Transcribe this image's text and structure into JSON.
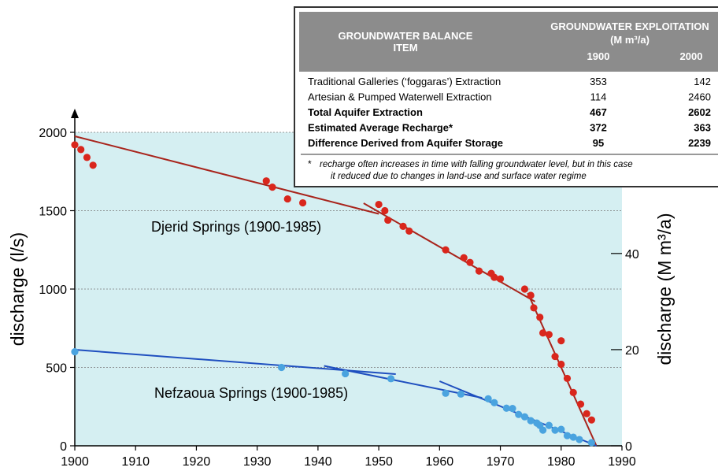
{
  "chart_data": {
    "type": "scatter",
    "xlim": [
      1900,
      1990
    ],
    "xticks": [
      1900,
      1910,
      1920,
      1930,
      1940,
      1950,
      1960,
      1970,
      1980,
      1990
    ],
    "ylim": [
      0,
      2000
    ],
    "yticks": [
      0,
      500,
      1000,
      1500,
      2000
    ],
    "y2lim": [
      0,
      65.2
    ],
    "y2ticks": [
      0,
      20,
      40
    ],
    "grid": true,
    "ylabel": "discharge (l/s)",
    "y2label": "discharge (M m³/a)",
    "series": [
      {
        "name": "Djerid Springs (1900-1985)",
        "color": "#d9261c",
        "x": [
          1900,
          1901,
          1902,
          1903,
          1931.5,
          1932.5,
          1935,
          1937.5,
          1950,
          1951,
          1951.5,
          1954,
          1955,
          1961,
          1964,
          1965,
          1966.5,
          1968.5,
          1969,
          1970,
          1974,
          1975,
          1975.5,
          1976.5,
          1977,
          1978,
          1979,
          1980,
          1980,
          1981,
          1982,
          1983.2,
          1984.2,
          1985
        ],
        "values": [
          1920,
          1890,
          1840,
          1790,
          1690,
          1650,
          1575,
          1550,
          1540,
          1500,
          1440,
          1400,
          1370,
          1250,
          1200,
          1170,
          1115,
          1100,
          1075,
          1065,
          1000,
          960,
          880,
          820,
          720,
          710,
          570,
          520,
          670,
          430,
          340,
          266,
          205,
          165
        ]
      },
      {
        "name": "Nefzaoua Springs (1900-1985)",
        "color": "#4aa3df",
        "x": [
          1900,
          1934,
          1944.5,
          1952,
          1961,
          1963.5,
          1968,
          1969,
          1971,
          1972,
          1973,
          1974,
          1975,
          1976,
          1976.5,
          1977,
          1978,
          1979,
          1980,
          1981,
          1982,
          1983,
          1985
        ],
        "values": [
          600,
          500,
          460,
          428,
          335,
          330,
          300,
          275,
          240,
          238,
          200,
          185,
          160,
          145,
          130,
          100,
          130,
          100,
          105,
          65,
          55,
          40,
          20
        ]
      }
    ],
    "trend_lines": [
      {
        "color": "#a8241c",
        "x": [
          1900,
          1950
        ],
        "values": [
          1975,
          1480
        ]
      },
      {
        "color": "#a8241c",
        "x": [
          1947.5,
          1975.7
        ],
        "values": [
          1548,
          920
        ]
      },
      {
        "color": "#a8241c",
        "x": [
          1974.5,
          1985.8
        ],
        "values": [
          975,
          0
        ]
      },
      {
        "color": "#1f4fbf",
        "x": [
          1900,
          1952.8
        ],
        "values": [
          613,
          457
        ]
      },
      {
        "color": "#1f4fbf",
        "x": [
          1941,
          1967
        ],
        "values": [
          510,
          306
        ]
      },
      {
        "color": "#1f4fbf",
        "x": [
          1960,
          1985.8
        ],
        "values": [
          412,
          0
        ]
      }
    ],
    "table": {
      "header": {
        "item": "GROUNDWATER BALANCE ITEM",
        "group": "GROUNDWATER EXPLOITATION",
        "unit": "(M m³/a)",
        "years": [
          "1900",
          "2000"
        ]
      },
      "rows": [
        [
          "Traditional Galleries (‘foggaras’) Extraction",
          353,
          142
        ],
        [
          "Artesian & Pumped Waterwell Extraction",
          114,
          2460
        ],
        [
          "Total Aquifer Extraction",
          467,
          2602
        ],
        [
          "Estimated Average Recharge*",
          372,
          363
        ],
        [
          "Difference Derived from Aquifer Storage",
          95,
          2239
        ]
      ],
      "footnote_mark": "*",
      "footnote": [
        "recharge often increases in time with falling groundwater level, but in this case",
        "it reduced due to changes in land-use and surface water regime"
      ]
    }
  }
}
